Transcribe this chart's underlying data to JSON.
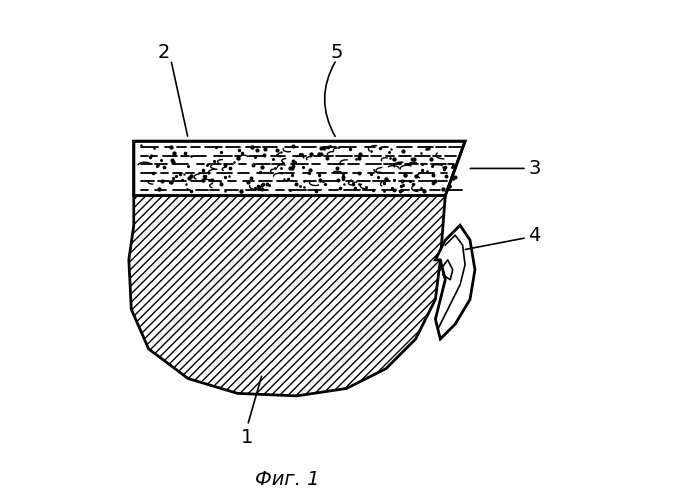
{
  "caption": "Фиг. 1",
  "background_color": "#ffffff",
  "line_color": "#000000",
  "body_hatch": "////",
  "coating_texture": true,
  "lw_main": 2.0,
  "lw_thin": 1.2,
  "label_fontsize": 14
}
